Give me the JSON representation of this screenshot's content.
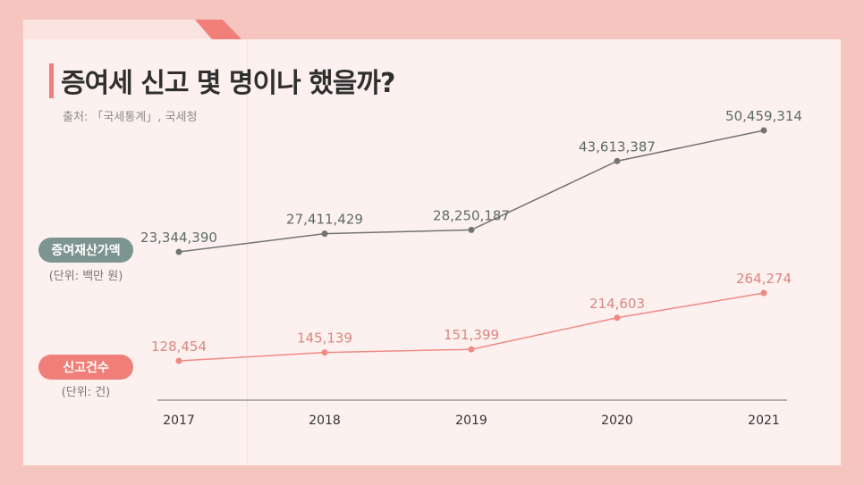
{
  "title": "증여세 신고 몇 명이나 했을까?",
  "source": "출처: 「국세통계」, 국세청",
  "legend": {
    "gift": {
      "label": "증여재산가액",
      "unit": "(단위: 백만 원)"
    },
    "count": {
      "label": "신고건수",
      "unit": "(단위: 건)"
    }
  },
  "colors": {
    "gift_line": "#737373",
    "gift_label": "#5c6b68",
    "count_line": "#ef8a83",
    "count_label": "#d98680",
    "axis": "#9a9a9a"
  },
  "chart_data": {
    "type": "line",
    "title": "증여세 신고 몇 명이나 했을까?",
    "xlabel": "",
    "ylabel": "",
    "categories": [
      "2017",
      "2018",
      "2019",
      "2020",
      "2021"
    ],
    "series": [
      {
        "name": "증여재산가액",
        "values": [
          23344390,
          27411429,
          28250187,
          43613387,
          50459314
        ],
        "labels": [
          "23,344,390",
          "27,411,429",
          "28,250,187",
          "43,613,387",
          "50,459,314"
        ]
      },
      {
        "name": "신고건수",
        "values": [
          128454,
          145139,
          151399,
          214603,
          264274
        ],
        "labels": [
          "128,454",
          "145,139",
          "151,399",
          "214,603",
          "264,274"
        ]
      }
    ],
    "grid": false,
    "legend": "left"
  }
}
